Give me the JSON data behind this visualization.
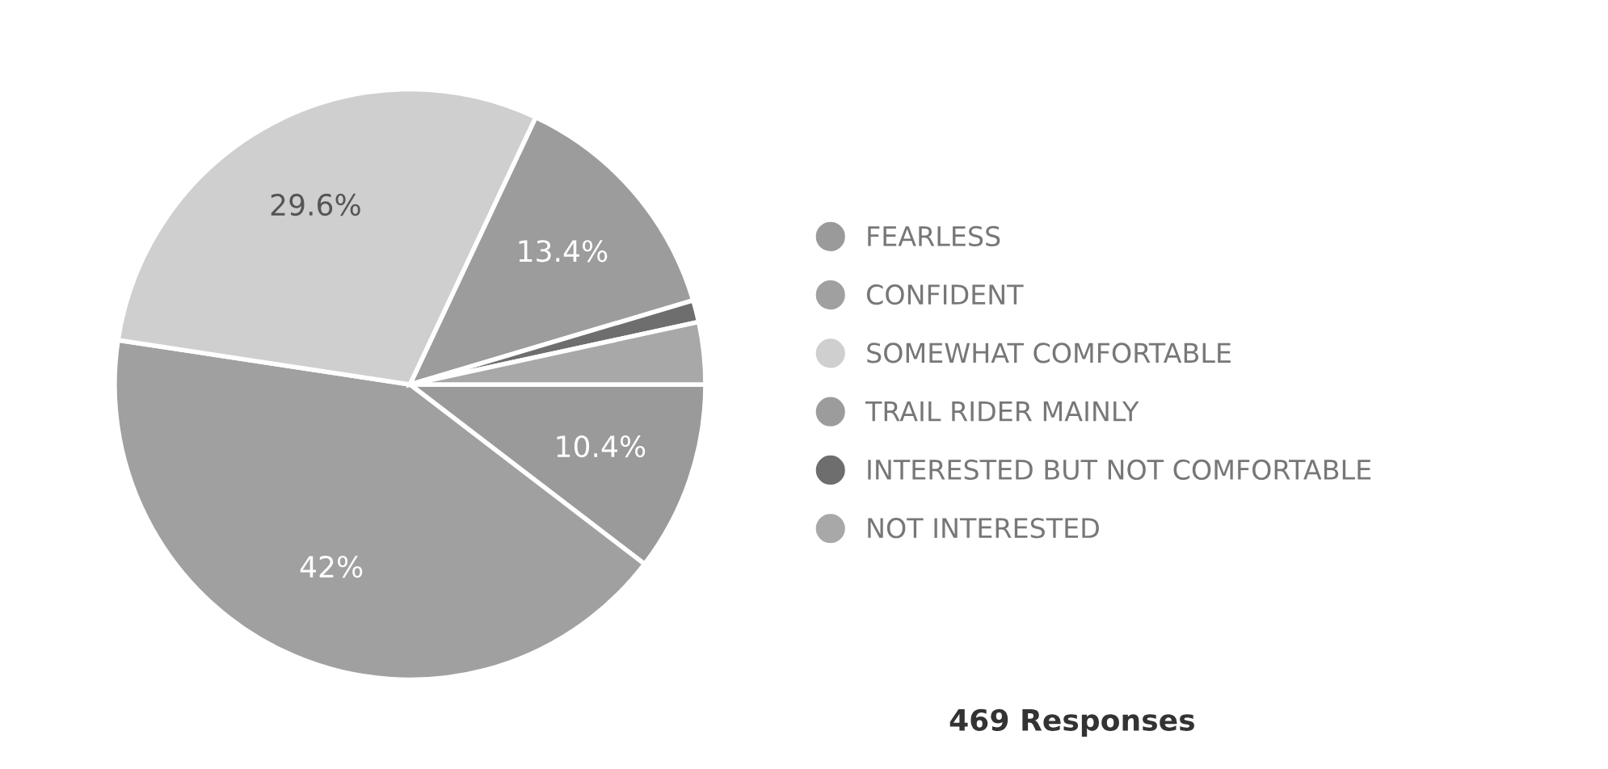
{
  "chart_data": {
    "type": "pie",
    "categories": [
      "FEARLESS",
      "CONFIDENT",
      "SOMEWHAT COMFORTABLE",
      "TRAIL RIDER MAINLY",
      "INTERESTED BUT NOT COMFORTABLE",
      "NOT INTERESTED"
    ],
    "values": [
      10.4,
      42,
      29.6,
      13.4,
      1.2,
      3.4
    ],
    "value_labels": [
      "10.4%",
      "42%",
      "29.6%",
      "13.4%",
      null,
      null
    ],
    "colors": [
      "#9a9a9a",
      "#a0a0a0",
      "#cfcfcf",
      "#9c9c9c",
      "#6e6e6e",
      "#a8a8a8"
    ],
    "legend": "right",
    "annotations": [
      "469 Responses"
    ]
  }
}
